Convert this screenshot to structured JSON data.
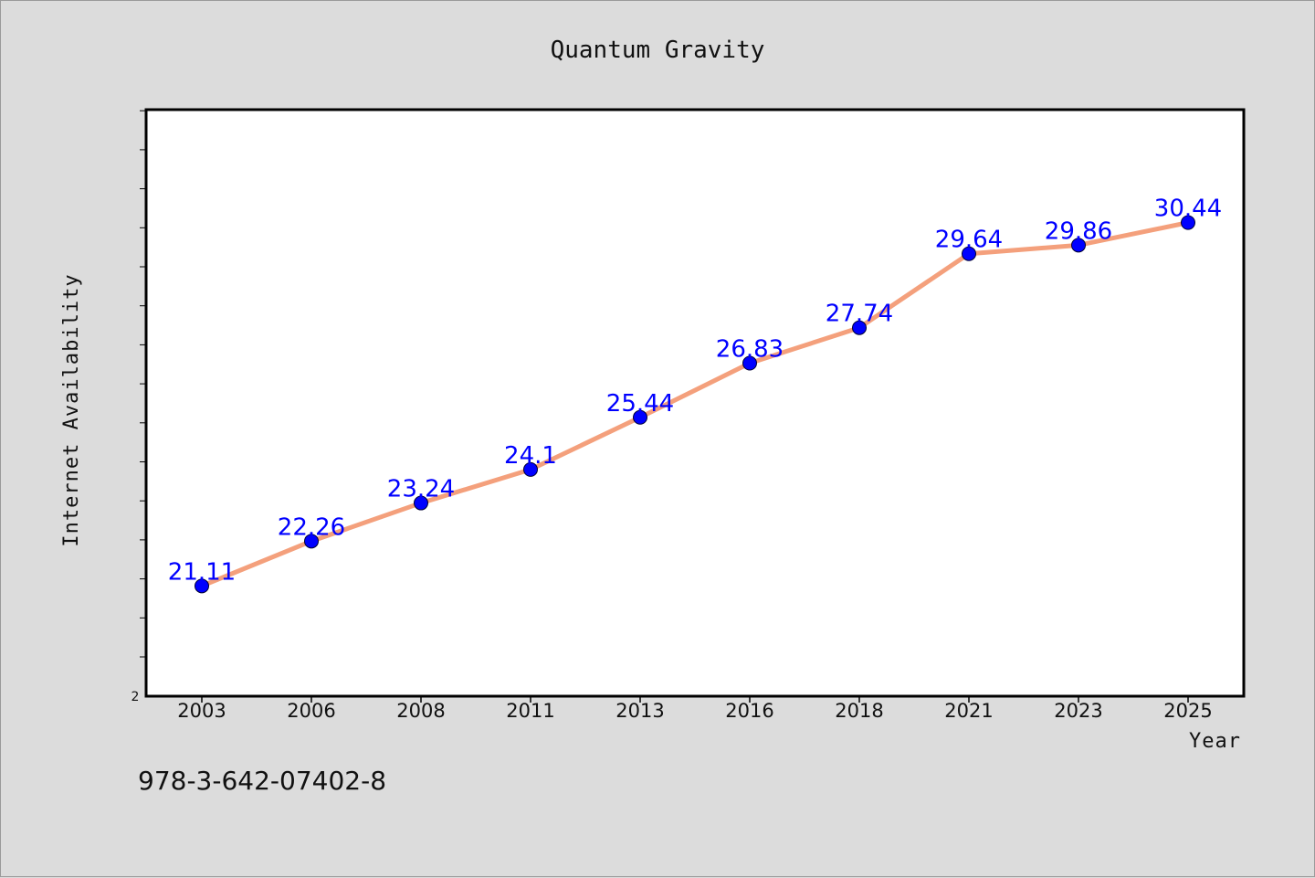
{
  "chart_data": {
    "type": "line",
    "title": "Quantum Gravity",
    "xlabel": "Year",
    "ylabel": "Internet Availability",
    "categories": [
      "2003",
      "2006",
      "2008",
      "2011",
      "2013",
      "2016",
      "2018",
      "2021",
      "2023",
      "2025"
    ],
    "series": [
      {
        "values": [
          21.11,
          22.26,
          23.24,
          24.1,
          25.44,
          26.83,
          27.74,
          29.64,
          29.86,
          30.44
        ],
        "data_labels": [
          "21.11",
          "22.26",
          "23.24",
          "24.1",
          "25.44",
          "26.83",
          "27.74",
          "29.64",
          "29.86",
          "30.44"
        ]
      }
    ],
    "y_tick_labels": [
      "2"
    ],
    "ylim": [
      18.28,
      33.34
    ],
    "grid": false,
    "legend": "none",
    "colors": {
      "line": "#f4a07c",
      "marker": "#0000ff",
      "data_label": "#0000ff",
      "plot_background": "#ffffff",
      "figure_background": "#dcdcdc"
    }
  },
  "annotation": "978-3-642-07402-8"
}
